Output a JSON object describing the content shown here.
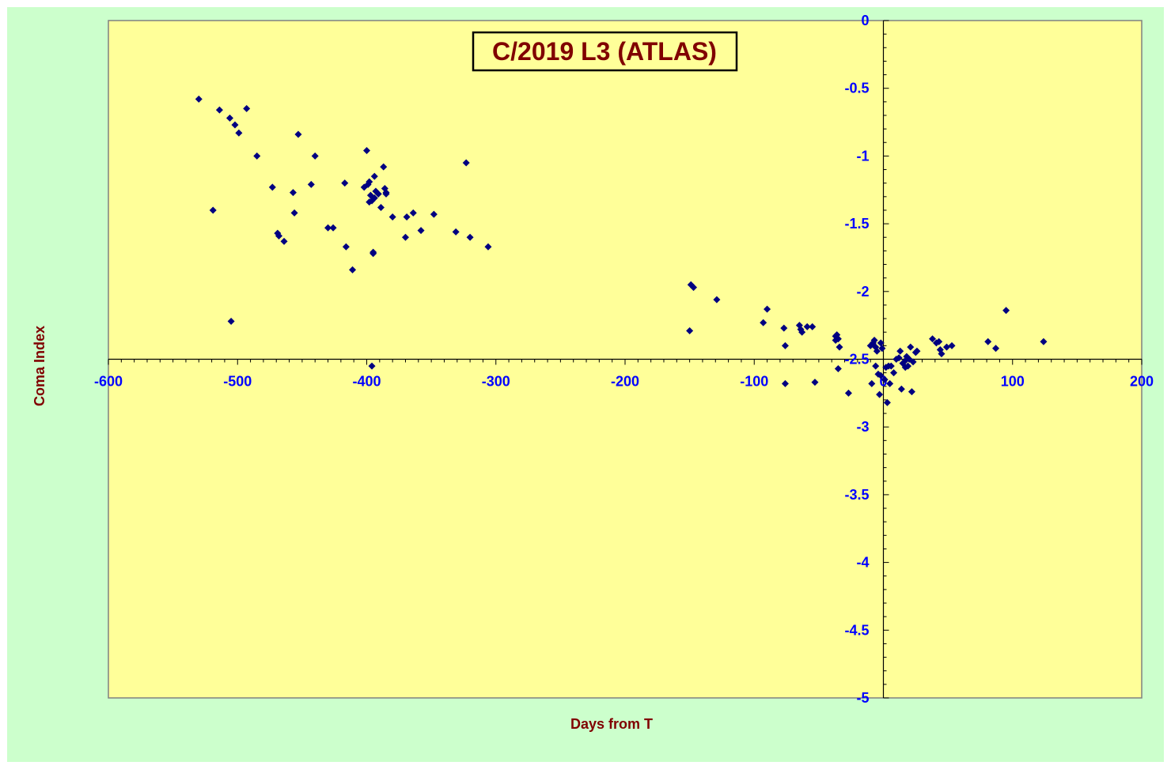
{
  "chart_data": {
    "type": "scatter",
    "title": "C/2019 L3 (ATLAS)",
    "xlabel": "Days from T",
    "ylabel": "Coma Index",
    "xlim": [
      -600,
      200
    ],
    "ylim": [
      -5,
      0
    ],
    "x_ticks": [
      -600,
      -500,
      -400,
      -300,
      -200,
      -100,
      0,
      100,
      200
    ],
    "y_ticks": [
      0,
      -0.5,
      -1,
      -1.5,
      -2,
      -2.5,
      -3,
      -3.5,
      -4,
      -4.5,
      -5
    ],
    "x_tick_labels": [
      "-600",
      "-500",
      "-400",
      "-300",
      "-200",
      "-100",
      "0",
      "100",
      "200"
    ],
    "y_tick_labels": [
      "0",
      "-0.5",
      "-1",
      "-1.5",
      "-2",
      "-2.5",
      "-3",
      "-3.5",
      "-4",
      "-4.5",
      "-5"
    ],
    "grid": false,
    "legend": "none",
    "colors": {
      "outer_background": "#ccffcc",
      "plot_background": "#ffff99",
      "marker": "#000080",
      "tick_labels": "#0000ff",
      "titles": "#800000"
    },
    "series": [
      {
        "marker": "diamond",
        "x": [
          -530,
          -514,
          -506,
          -502,
          -499,
          -493,
          -485,
          -473,
          -469,
          -468,
          -464,
          -457,
          -456,
          -453,
          -443,
          -440,
          -430,
          -426,
          -417,
          -416,
          -411,
          -402,
          -400,
          -399,
          -398,
          -398,
          -397,
          -396,
          -395,
          -395,
          -394,
          -394,
          -393,
          -391,
          -389,
          -387,
          -386,
          -385,
          -385,
          -380,
          -370,
          -369,
          -364,
          -358,
          -348,
          -331,
          -323,
          -320,
          -306,
          -519,
          -505,
          -396,
          -150,
          -149,
          -147,
          -129,
          -90,
          -93,
          -77,
          -76,
          -65,
          -64,
          -63,
          -59,
          -55,
          -37,
          -36,
          -35,
          -35,
          -34,
          -37,
          -27,
          -53,
          -76,
          -10,
          -9,
          -8,
          -7,
          -6,
          -6,
          -5,
          -4,
          -3,
          -2,
          -2,
          -1,
          1,
          2,
          3,
          4,
          5,
          6,
          8,
          10,
          12,
          13,
          14,
          15,
          17,
          17,
          18,
          19,
          20,
          21,
          22,
          23,
          25,
          26,
          38,
          41,
          43,
          44,
          45,
          49,
          53,
          81,
          87,
          95,
          124
        ],
        "y": [
          -0.58,
          -0.66,
          -0.72,
          -0.77,
          -0.83,
          -0.65,
          -1.0,
          -1.23,
          -1.57,
          -1.59,
          -1.63,
          -1.27,
          -1.42,
          -0.84,
          -1.21,
          -1.0,
          -1.53,
          -1.53,
          -1.2,
          -1.67,
          -1.84,
          -1.23,
          -0.96,
          -1.21,
          -1.34,
          -1.19,
          -1.29,
          -1.33,
          -1.72,
          -1.71,
          -1.15,
          -1.31,
          -1.26,
          -1.28,
          -1.38,
          -1.08,
          -1.24,
          -1.27,
          -1.28,
          -1.45,
          -1.6,
          -1.45,
          -1.42,
          -1.55,
          -1.43,
          -1.56,
          -1.05,
          -1.6,
          -1.67,
          -1.4,
          -2.22,
          -2.55,
          -2.29,
          -1.95,
          -1.97,
          -2.06,
          -2.13,
          -2.23,
          -2.27,
          -2.4,
          -2.25,
          -2.28,
          -2.3,
          -2.26,
          -2.26,
          -2.33,
          -2.32,
          -2.35,
          -2.57,
          -2.41,
          -2.36,
          -2.75,
          -2.67,
          -2.68,
          -2.4,
          -2.68,
          -2.38,
          -2.36,
          -2.41,
          -2.55,
          -2.44,
          -2.61,
          -2.76,
          -2.38,
          -2.62,
          -2.42,
          -2.65,
          -2.56,
          -2.82,
          -2.55,
          -2.68,
          -2.55,
          -2.6,
          -2.5,
          -2.49,
          -2.44,
          -2.72,
          -2.53,
          -2.51,
          -2.56,
          -2.48,
          -2.55,
          -2.5,
          -2.41,
          -2.74,
          -2.52,
          -2.45,
          -2.44,
          -2.35,
          -2.38,
          -2.37,
          -2.43,
          -2.46,
          -2.41,
          -2.4,
          -2.37,
          -2.42,
          -2.14,
          -2.37
        ]
      }
    ]
  }
}
